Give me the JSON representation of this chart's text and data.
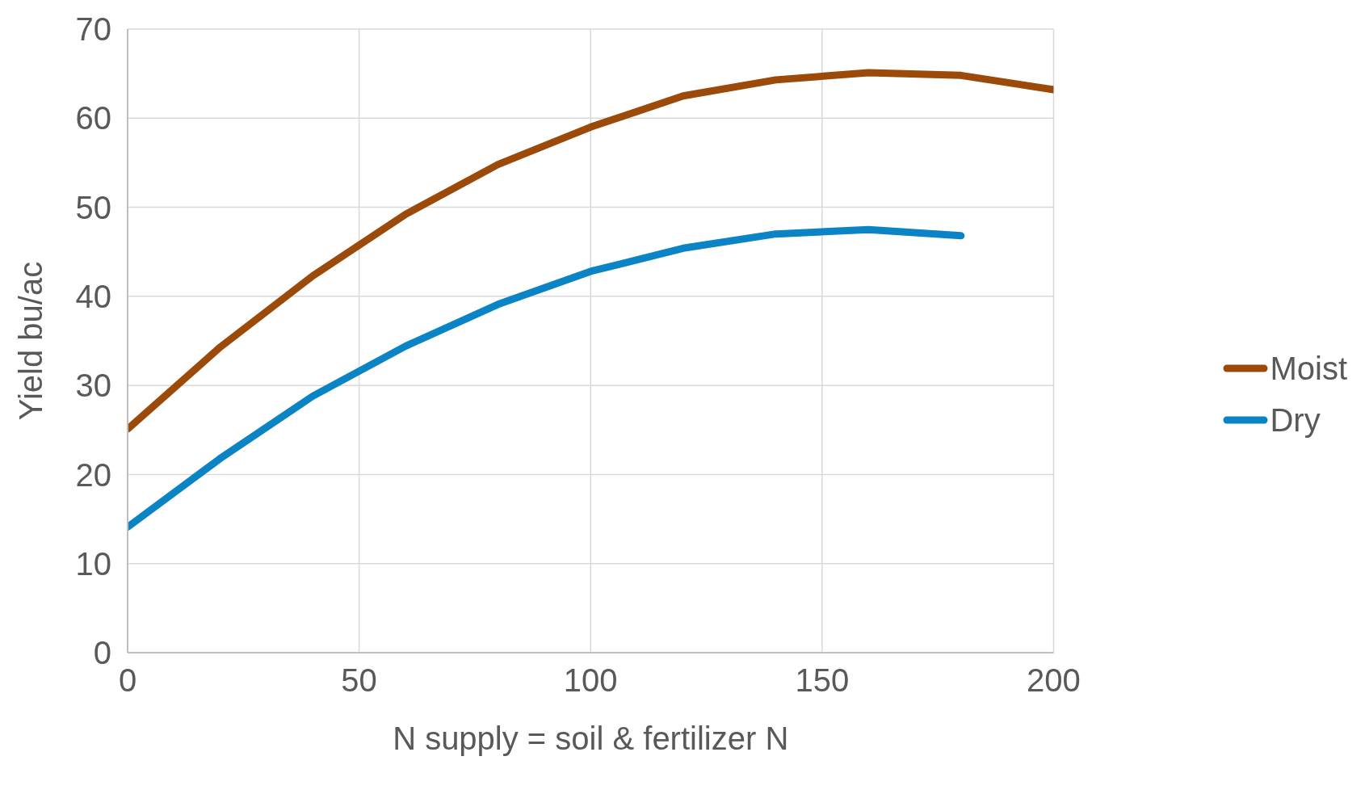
{
  "chart_data": {
    "type": "line",
    "xlabel": "N supply =  soil & fertilizer N",
    "ylabel": "Yield bu/ac",
    "x": [
      0,
      20,
      40,
      60,
      80,
      100,
      120,
      140,
      160,
      180,
      200
    ],
    "series": [
      {
        "name": "Moist",
        "color": "#9c4a0a",
        "values": [
          25.1,
          34.3,
          42.3,
          49.2,
          54.8,
          59.0,
          62.5,
          64.3,
          65.1,
          64.8,
          63.2
        ]
      },
      {
        "name": "Dry",
        "color": "#0a84c4",
        "values": [
          14.1,
          21.8,
          28.8,
          34.4,
          39.1,
          42.8,
          45.4,
          47.0,
          47.5,
          46.8,
          null
        ]
      }
    ],
    "xlim": [
      0,
      200
    ],
    "xticks": [
      0,
      50,
      100,
      150,
      200
    ],
    "ylim": [
      0,
      70
    ],
    "yticks": [
      0,
      10,
      20,
      30,
      40,
      50,
      60,
      70
    ],
    "grid": true,
    "legend": "right",
    "marker": "none",
    "line_style": "solid"
  }
}
